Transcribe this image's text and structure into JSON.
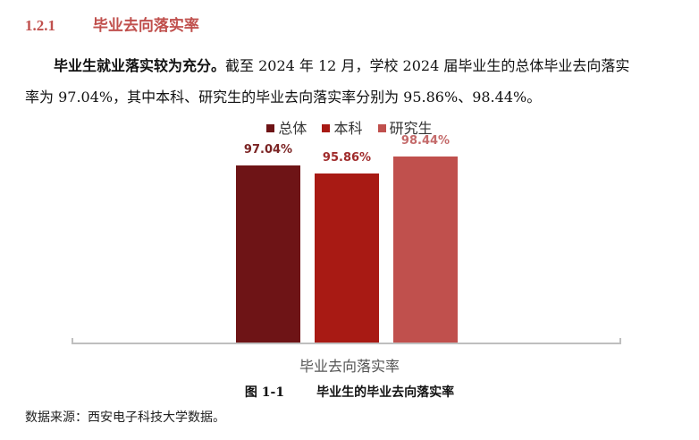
{
  "section": {
    "number": "1.2.1",
    "title": "毕业去向落实率"
  },
  "paragraph": {
    "bold_lead": "毕业生就业落实较为充分。",
    "line1_rest": "截至 2024 年 12 月，学校 2024 届毕业生的总体毕业去向落实",
    "line2": "率为 97.04%，其中本科、研究生的毕业去向落实率分别为 95.86%、98.44%。"
  },
  "chart_data": {
    "type": "bar",
    "categories": [
      "毕业去向落实率"
    ],
    "series": [
      {
        "name": "总体",
        "values": [
          97.04
        ],
        "label": "97.04%",
        "color": "#6e1416"
      },
      {
        "name": "本科",
        "values": [
          95.86
        ],
        "label": "95.86%",
        "color": "#a81a14"
      },
      {
        "name": "研究生",
        "values": [
          98.44
        ],
        "label": "98.44%",
        "color": "#c0504d"
      }
    ],
    "title": "毕业生的毕业去向落实率",
    "xlabel": "毕业去向落实率",
    "ylabel": "",
    "legend_position": "top",
    "grid": false,
    "ylim": [
      0,
      100
    ],
    "data_label_colors": [
      "#7b2424",
      "#a02c2c",
      "#c46a6a"
    ]
  },
  "caption": {
    "figure_no": "图 1-1",
    "title": "毕业生的毕业去向落实率"
  },
  "source": "数据来源：西安电子科技大学数据。"
}
